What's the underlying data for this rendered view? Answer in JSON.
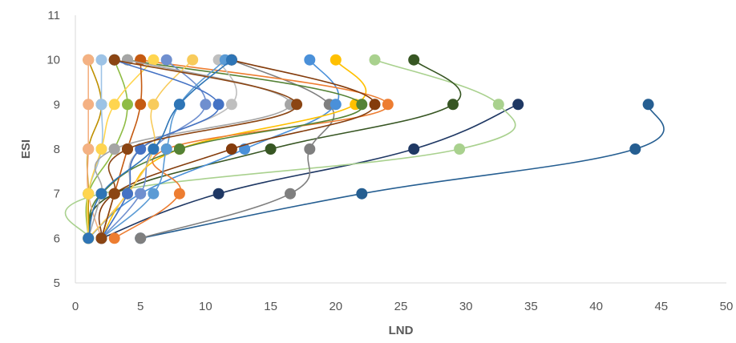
{
  "chart_data": {
    "type": "scatter",
    "xlabel": "LND",
    "ylabel": "ESI",
    "xlim": [
      0,
      50
    ],
    "ylim": [
      5,
      11
    ],
    "xticks": [
      "0",
      "5",
      "10",
      "15",
      "20",
      "25",
      "30",
      "35",
      "40",
      "45",
      "50"
    ],
    "yticks": [
      "5",
      "6",
      "7",
      "8",
      "9",
      "10",
      "11"
    ],
    "grid": "none",
    "legend": "none",
    "series": [
      {
        "color": "#255E91",
        "points": [
          [
            5,
            6
          ],
          [
            22,
            7
          ],
          [
            43,
            8
          ],
          [
            44,
            9
          ]
        ]
      },
      {
        "color": "#1F3864",
        "points": [
          [
            2,
            6
          ],
          [
            11,
            7
          ],
          [
            26,
            8
          ],
          [
            34,
            9
          ]
        ]
      },
      {
        "color": "#A9D18E",
        "points": [
          [
            1,
            6
          ],
          [
            2,
            7
          ],
          [
            29.5,
            8
          ],
          [
            32.5,
            9
          ],
          [
            23,
            10
          ]
        ]
      },
      {
        "color": "#375623",
        "points": [
          [
            1,
            6
          ],
          [
            3,
            7
          ],
          [
            15,
            8
          ],
          [
            29,
            9
          ],
          [
            26,
            10
          ]
        ]
      },
      {
        "color": "#7F7F7F",
        "points": [
          [
            5,
            6
          ],
          [
            16.5,
            7
          ],
          [
            18,
            8
          ],
          [
            19.5,
            9
          ],
          [
            12,
            10
          ]
        ]
      },
      {
        "color": "#4A90D9",
        "points": [
          [
            1,
            6
          ],
          [
            5,
            7
          ],
          [
            13,
            8
          ],
          [
            20,
            9
          ],
          [
            18,
            10
          ]
        ]
      },
      {
        "color": "#FFC000",
        "points": [
          [
            2,
            6
          ],
          [
            4,
            7
          ],
          [
            8,
            8
          ],
          [
            21.5,
            9
          ],
          [
            20,
            10
          ]
        ]
      },
      {
        "color": "#ED7D31",
        "points": [
          [
            3,
            6
          ],
          [
            8,
            7
          ],
          [
            7,
            8
          ],
          [
            24,
            9
          ],
          [
            5,
            10
          ]
        ]
      },
      {
        "color": "#843C0C",
        "points": [
          [
            2,
            6
          ],
          [
            3,
            7
          ],
          [
            12,
            8
          ],
          [
            23,
            9
          ],
          [
            12,
            10
          ]
        ]
      },
      {
        "color": "#548235",
        "points": [
          [
            1,
            6
          ],
          [
            2,
            7
          ],
          [
            8,
            8
          ],
          [
            22,
            9
          ],
          [
            4,
            10
          ]
        ]
      },
      {
        "color": "#BF9000",
        "points": [
          [
            1,
            6
          ],
          [
            1,
            7
          ],
          [
            1,
            8
          ],
          [
            2,
            9
          ],
          [
            1,
            10
          ]
        ]
      },
      {
        "color": "#F4B183",
        "points": [
          [
            2,
            6
          ],
          [
            1,
            7
          ],
          [
            1,
            8
          ],
          [
            1,
            9
          ],
          [
            1,
            10
          ]
        ]
      },
      {
        "color": "#9DC3E6",
        "points": [
          [
            1,
            6
          ],
          [
            1,
            7
          ],
          [
            2,
            8
          ],
          [
            2,
            9
          ],
          [
            2,
            10
          ]
        ]
      },
      {
        "color": "#8FBC45",
        "points": [
          [
            1,
            6
          ],
          [
            1,
            7
          ],
          [
            3,
            8
          ],
          [
            4,
            9
          ],
          [
            3,
            10
          ]
        ]
      },
      {
        "color": "#FFD54F",
        "points": [
          [
            1,
            6
          ],
          [
            1,
            7
          ],
          [
            2,
            8
          ],
          [
            3,
            9
          ],
          [
            6,
            10
          ]
        ]
      },
      {
        "color": "#BFBFBF",
        "points": [
          [
            2,
            6
          ],
          [
            4,
            7
          ],
          [
            5,
            8
          ],
          [
            12,
            9
          ],
          [
            11,
            10
          ]
        ]
      },
      {
        "color": "#6F8FCF",
        "points": [
          [
            2,
            6
          ],
          [
            5,
            7
          ],
          [
            6,
            8
          ],
          [
            10,
            9
          ],
          [
            7,
            10
          ]
        ]
      },
      {
        "color": "#5B9BD5",
        "points": [
          [
            2,
            6
          ],
          [
            6,
            7
          ],
          [
            7,
            8
          ],
          [
            8,
            9
          ],
          [
            11.5,
            10
          ]
        ]
      },
      {
        "color": "#C55A11",
        "points": [
          [
            2,
            6
          ],
          [
            3,
            7
          ],
          [
            4,
            8
          ],
          [
            5,
            9
          ],
          [
            5,
            10
          ]
        ]
      },
      {
        "color": "#A5A5A5",
        "points": [
          [
            1,
            6
          ],
          [
            2,
            7
          ],
          [
            3,
            8
          ],
          [
            16.5,
            9
          ],
          [
            4,
            10
          ]
        ]
      },
      {
        "color": "#F8CB5B",
        "points": [
          [
            1,
            6
          ],
          [
            4,
            7
          ],
          [
            6,
            8
          ],
          [
            6,
            9
          ],
          [
            9,
            10
          ]
        ]
      },
      {
        "color": "#4472C4",
        "points": [
          [
            2,
            6
          ],
          [
            4,
            7
          ],
          [
            5,
            8
          ],
          [
            11,
            9
          ],
          [
            3,
            10
          ]
        ]
      },
      {
        "color": "#8B4513",
        "points": [
          [
            2,
            6
          ],
          [
            3,
            7
          ],
          [
            4,
            8
          ],
          [
            17,
            9
          ],
          [
            3,
            10
          ]
        ]
      },
      {
        "color": "#2E75B6",
        "points": [
          [
            1,
            6
          ],
          [
            2,
            7
          ],
          [
            6,
            8
          ],
          [
            8,
            9
          ],
          [
            12,
            10
          ]
        ]
      }
    ]
  }
}
